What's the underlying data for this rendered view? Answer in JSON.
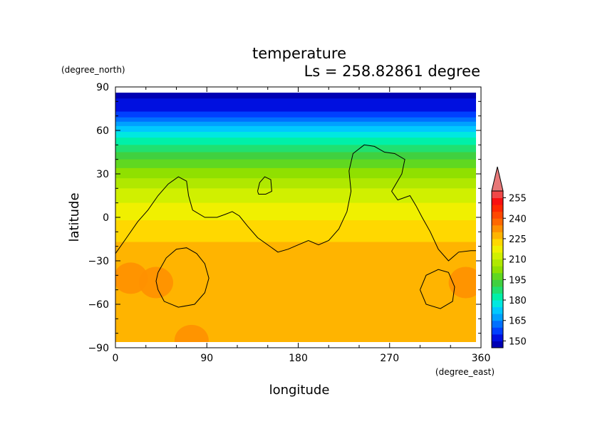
{
  "chart_data": {
    "type": "heatmap",
    "title": "temperature",
    "subtitle": "Ls = 258.82861 degree",
    "xlabel": "longitude",
    "ylabel": "latitude",
    "x_unit": "(degree_east)",
    "y_unit": "(degree_north)",
    "xlim": [
      0,
      360
    ],
    "ylim": [
      -90,
      90
    ],
    "x_ticks": [
      "0",
      "90",
      "180",
      "270",
      "360"
    ],
    "y_ticks": [
      "90",
      "60",
      "30",
      "0",
      "−30",
      "−60",
      "−90"
    ],
    "colorbar": {
      "levels": [
        145,
        150,
        155,
        160,
        165,
        170,
        175,
        180,
        185,
        190,
        195,
        200,
        205,
        210,
        215,
        220,
        225,
        230,
        235,
        240,
        245,
        250,
        255,
        260
      ],
      "labels": [
        "150",
        "165",
        "180",
        "195",
        "210",
        "225",
        "240",
        "255"
      ],
      "colors": [
        "#0000b4",
        "#0010e0",
        "#0040ff",
        "#0070ff",
        "#00a0ff",
        "#00c8ff",
        "#00e8e0",
        "#00f0a8",
        "#20e070",
        "#40d040",
        "#60d820",
        "#90e000",
        "#b0e800",
        "#d0f000",
        "#f0f000",
        "#ffd800",
        "#ffb400",
        "#ff9000",
        "#ff6800",
        "#ff4800",
        "#ff2800",
        "#f81010",
        "#f04848",
        "#e87878"
      ],
      "extend": "max"
    },
    "lat_profile": [
      {
        "lat": 85,
        "value": 149
      },
      {
        "lat": 75,
        "value": 152
      },
      {
        "lat": 70,
        "value": 158
      },
      {
        "lat": 65,
        "value": 166
      },
      {
        "lat": 60,
        "value": 174
      },
      {
        "lat": 55,
        "value": 180
      },
      {
        "lat": 50,
        "value": 185
      },
      {
        "lat": 45,
        "value": 190
      },
      {
        "lat": 40,
        "value": 195
      },
      {
        "lat": 30,
        "value": 203
      },
      {
        "lat": 20,
        "value": 210
      },
      {
        "lat": 10,
        "value": 215
      },
      {
        "lat": 0,
        "value": 219
      },
      {
        "lat": -10,
        "value": 223
      },
      {
        "lat": -20,
        "value": 226
      },
      {
        "lat": -30,
        "value": 228
      },
      {
        "lat": -50,
        "value": 229
      },
      {
        "lat": -70,
        "value": 228
      },
      {
        "lat": -85,
        "value": 227
      }
    ],
    "warm_patches": [
      {
        "lon": 15,
        "lat": -42,
        "value": 233
      },
      {
        "lon": 345,
        "lat": -45,
        "value": 233
      },
      {
        "lon": 40,
        "lat": -45,
        "value": 232
      },
      {
        "lon": 75,
        "lat": -85,
        "value": 232
      }
    ],
    "contour_lines": [
      [
        [
          0,
          -25
        ],
        [
          10,
          -15
        ],
        [
          22,
          -3
        ],
        [
          32,
          5
        ],
        [
          42,
          15
        ],
        [
          52,
          23
        ],
        [
          62,
          28
        ],
        [
          70,
          25
        ],
        [
          72,
          15
        ],
        [
          76,
          5
        ],
        [
          88,
          0
        ],
        [
          100,
          0
        ],
        [
          108,
          2
        ],
        [
          115,
          4
        ],
        [
          122,
          1
        ],
        [
          130,
          -6
        ],
        [
          140,
          -14
        ],
        [
          150,
          -19
        ],
        [
          160,
          -24
        ],
        [
          170,
          -22
        ],
        [
          180,
          -19
        ],
        [
          190,
          -16
        ],
        [
          200,
          -19
        ],
        [
          210,
          -16
        ],
        [
          220,
          -8
        ],
        [
          228,
          4
        ],
        [
          232,
          18
        ],
        [
          230,
          32
        ],
        [
          234,
          44
        ],
        [
          245,
          50
        ],
        [
          255,
          49
        ],
        [
          265,
          45
        ],
        [
          275,
          44
        ],
        [
          285,
          40
        ],
        [
          282,
          30
        ],
        [
          272,
          18
        ],
        [
          278,
          12
        ],
        [
          290,
          15
        ],
        [
          296,
          8
        ],
        [
          302,
          0
        ],
        [
          310,
          -10
        ],
        [
          318,
          -22
        ],
        [
          328,
          -30
        ],
        [
          338,
          -24
        ],
        [
          350,
          -23
        ],
        [
          357,
          -23
        ]
      ],
      [
        [
          140,
          18
        ],
        [
          142,
          24
        ],
        [
          147,
          28
        ],
        [
          153,
          26
        ],
        [
          154,
          18
        ],
        [
          148,
          16
        ],
        [
          141,
          16
        ],
        [
          140,
          18
        ]
      ],
      [
        [
          42,
          -38
        ],
        [
          50,
          -28
        ],
        [
          60,
          -22
        ],
        [
          70,
          -21
        ],
        [
          80,
          -25
        ],
        [
          88,
          -32
        ],
        [
          92,
          -42
        ],
        [
          88,
          -52
        ],
        [
          78,
          -60
        ],
        [
          62,
          -62
        ],
        [
          48,
          -58
        ],
        [
          42,
          -50
        ],
        [
          40,
          -44
        ],
        [
          42,
          -38
        ]
      ],
      [
        [
          300,
          -50
        ],
        [
          306,
          -40
        ],
        [
          318,
          -36
        ],
        [
          328,
          -38
        ],
        [
          334,
          -48
        ],
        [
          332,
          -58
        ],
        [
          320,
          -63
        ],
        [
          306,
          -60
        ],
        [
          300,
          -50
        ]
      ]
    ]
  }
}
